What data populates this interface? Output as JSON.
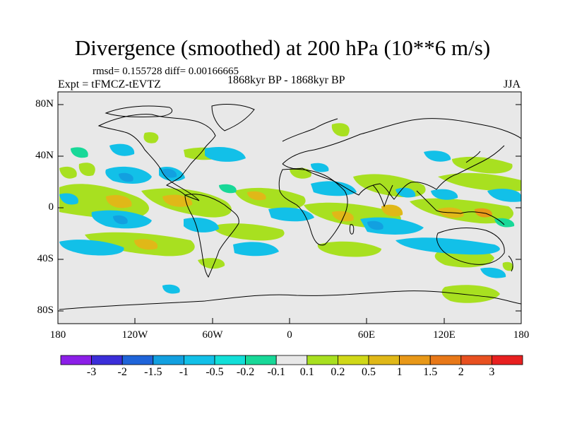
{
  "title": "Divergence (smoothed) at 200 hPa (10**6 m/s)",
  "stats": "rmsd= 0.155728 diff= 0.00166665",
  "experiment": "Expt = tFMCZ-tEVTZ",
  "period": "1868kyr BP - 1868kyr BP",
  "season": "JJA",
  "lat_labels": [
    "80N",
    "40N",
    "0",
    "40S",
    "80S"
  ],
  "lon_labels": [
    "180",
    "120W",
    "60W",
    "0",
    "60E",
    "120E",
    "180"
  ],
  "colorbar": {
    "colors": [
      "#8c1fe8",
      "#3b2ed9",
      "#1f64d9",
      "#12a0e0",
      "#12c0e8",
      "#12dfd8",
      "#18d898",
      "#e8e8e8",
      "#a8e020",
      "#d0d818",
      "#e0b818",
      "#e89818",
      "#e87818",
      "#e85020",
      "#e82020"
    ],
    "labels": [
      "-3",
      "-2",
      "-1.5",
      "-1",
      "-0.5",
      "-0.2",
      "-0.1",
      "0.1",
      "0.2",
      "0.5",
      "1",
      "1.5",
      "2",
      "3"
    ]
  }
}
